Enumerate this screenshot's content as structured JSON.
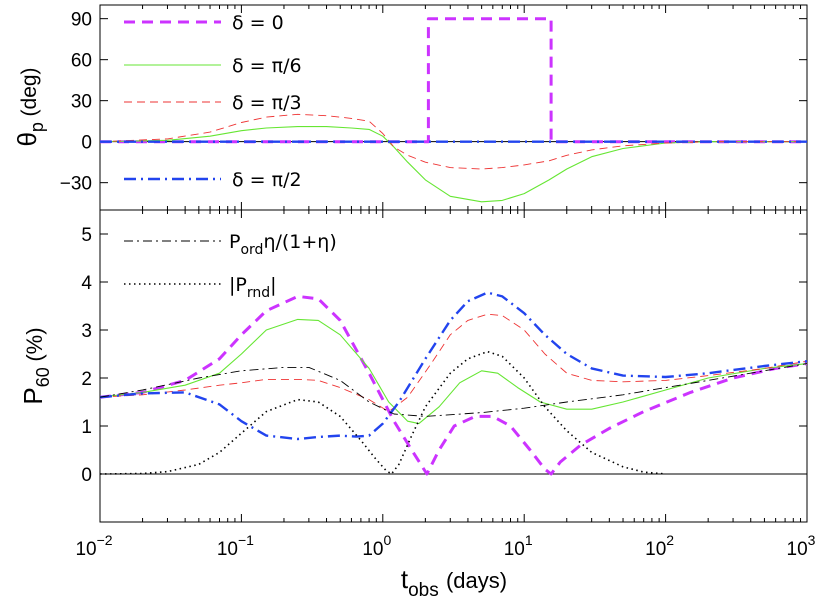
{
  "chart_data": [
    {
      "type": "line",
      "panel": "top",
      "ylabel_main": "θ",
      "ylabel_sub": "p",
      "ylabel_unit": "(deg)",
      "xscale": "log",
      "xlim": [
        0.01,
        1000
      ],
      "ylim": [
        -50,
        100
      ],
      "yticks": [
        -30,
        0,
        30,
        60,
        90
      ],
      "ytick_labels": [
        "−30",
        "0",
        "30",
        "60",
        "90"
      ],
      "legend_location": "left",
      "series": [
        {
          "name": "δ = 0",
          "color": "#cc33ff",
          "dash": "dashed-thick",
          "x": [
            0.01,
            2.1,
            2.1,
            15.5,
            15.5,
            1000
          ],
          "y": [
            0,
            0,
            90,
            90,
            0,
            0
          ]
        },
        {
          "name": "δ = π/6",
          "color": "#66e633",
          "dash": "solid",
          "x": [
            0.01,
            0.03,
            0.06,
            0.1,
            0.15,
            0.25,
            0.4,
            0.6,
            0.8,
            1.0,
            1.2,
            1.5,
            2,
            3,
            5,
            7,
            10,
            15,
            20,
            30,
            50,
            100,
            200,
            500,
            1000
          ],
          "y": [
            0,
            1,
            4,
            8,
            10,
            11,
            11,
            10,
            9,
            4,
            -4,
            -15,
            -28,
            -40,
            -44,
            -43,
            -38,
            -28,
            -20,
            -11,
            -5,
            -1,
            0,
            0,
            0
          ]
        },
        {
          "name": "δ = π/3",
          "color": "#ee3333",
          "dash": "dashed-thin",
          "x": [
            0.01,
            0.03,
            0.06,
            0.1,
            0.15,
            0.25,
            0.4,
            0.6,
            0.8,
            1.0,
            1.2,
            1.5,
            2,
            3,
            5,
            7,
            10,
            15,
            20,
            30,
            50,
            100,
            200,
            500,
            1000
          ],
          "y": [
            0,
            2,
            7,
            14,
            18,
            20,
            19,
            17,
            15,
            6,
            -4,
            -10,
            -15,
            -19,
            -20,
            -19,
            -17,
            -14,
            -10,
            -6,
            -3,
            -1,
            0,
            0,
            0
          ]
        },
        {
          "name": "δ = π/2",
          "color": "#2244ee",
          "dash": "dashdot",
          "x": [
            0.01,
            1000
          ],
          "y": [
            0,
            0
          ]
        }
      ]
    },
    {
      "type": "line",
      "panel": "bottom",
      "ylabel_main": "P",
      "ylabel_sub": "60",
      "ylabel_unit": "(%)",
      "xlabel_main": "t",
      "xlabel_sub": "obs",
      "xlabel_unit": "(days)",
      "xscale": "log",
      "xlim": [
        0.01,
        1000
      ],
      "ylim": [
        -1,
        5.5
      ],
      "yticks": [
        0,
        1,
        2,
        3,
        4,
        5
      ],
      "ytick_labels": [
        "0",
        "1",
        "2",
        "3",
        "4",
        "5"
      ],
      "xticks": [
        0.01,
        0.1,
        1,
        10,
        100,
        1000
      ],
      "xtick_base": "10",
      "xtick_exponents": [
        "−2",
        "−1",
        "0",
        "1",
        "2",
        "3"
      ],
      "legend_location": "top-left",
      "series": [
        {
          "name": "δ = 0",
          "color": "#cc33ff",
          "dash": "dashed-thick",
          "x": [
            0.01,
            0.02,
            0.04,
            0.07,
            0.1,
            0.15,
            0.25,
            0.35,
            0.5,
            0.8,
            1.2,
            1.6,
            2.05,
            2.5,
            3.2,
            4.5,
            6,
            8,
            11,
            14,
            15.5,
            18,
            25,
            40,
            70,
            150,
            300,
            600,
            1000
          ],
          "y": [
            1.6,
            1.7,
            1.95,
            2.4,
            2.9,
            3.4,
            3.7,
            3.65,
            3.2,
            2.1,
            1.1,
            0.5,
            0.0,
            0.5,
            1.0,
            1.2,
            1.2,
            1.0,
            0.5,
            0.1,
            0.0,
            0.25,
            0.6,
            0.95,
            1.3,
            1.7,
            2.0,
            2.2,
            2.3
          ]
        },
        {
          "name": "δ = π/6",
          "color": "#66e633",
          "dash": "solid",
          "x": [
            0.01,
            0.02,
            0.04,
            0.07,
            0.1,
            0.15,
            0.25,
            0.35,
            0.5,
            0.8,
            1.1,
            1.5,
            1.8,
            2.5,
            3.5,
            5,
            6.5,
            9,
            13,
            20,
            30,
            50,
            100,
            200,
            500,
            1000
          ],
          "y": [
            1.6,
            1.7,
            1.85,
            2.1,
            2.5,
            3.0,
            3.22,
            3.2,
            2.9,
            2.2,
            1.5,
            1.1,
            1.05,
            1.4,
            1.9,
            2.15,
            2.1,
            1.8,
            1.5,
            1.35,
            1.35,
            1.5,
            1.75,
            2.0,
            2.2,
            2.3
          ]
        },
        {
          "name": "δ = π/3",
          "color": "#ee3333",
          "dash": "dashed-thin",
          "x": [
            0.01,
            0.02,
            0.04,
            0.07,
            0.1,
            0.15,
            0.25,
            0.35,
            0.5,
            0.8,
            1.1,
            1.5,
            2.2,
            3,
            4,
            5.5,
            7,
            10,
            14,
            20,
            30,
            50,
            100,
            200,
            500,
            1000
          ],
          "y": [
            1.6,
            1.65,
            1.75,
            1.85,
            1.9,
            1.97,
            1.97,
            1.95,
            1.8,
            1.55,
            1.3,
            1.6,
            2.3,
            2.9,
            3.2,
            3.33,
            3.3,
            3.0,
            2.5,
            2.1,
            1.95,
            1.92,
            1.95,
            2.05,
            2.2,
            2.35
          ]
        },
        {
          "name": "δ = π/2",
          "color": "#2244ee",
          "dash": "dashdot",
          "x": [
            0.01,
            0.02,
            0.04,
            0.07,
            0.1,
            0.15,
            0.25,
            0.35,
            0.5,
            0.65,
            0.8,
            1.0,
            1.3,
            2,
            3,
            4,
            5.5,
            7,
            10,
            14,
            20,
            30,
            50,
            100,
            200,
            500,
            1000
          ],
          "y": [
            1.6,
            1.68,
            1.7,
            1.45,
            1.1,
            0.8,
            0.73,
            0.77,
            0.8,
            0.78,
            0.8,
            1.05,
            1.5,
            2.4,
            3.2,
            3.6,
            3.78,
            3.7,
            3.35,
            2.9,
            2.5,
            2.2,
            2.05,
            2.02,
            2.1,
            2.25,
            2.35
          ]
        },
        {
          "name": "P_ordη/(1+η)",
          "label_main": "P",
          "label_sub": "ord",
          "label_rest": "η/(1+η)",
          "color": "#000000",
          "dash": "dashdot-black",
          "x": [
            0.01,
            0.02,
            0.05,
            0.1,
            0.2,
            0.3,
            0.5,
            0.8,
            1.2,
            2,
            5,
            10,
            20,
            50,
            100,
            200,
            500,
            1000
          ],
          "y": [
            1.6,
            1.75,
            2.0,
            2.15,
            2.22,
            2.22,
            1.95,
            1.5,
            1.25,
            1.2,
            1.28,
            1.37,
            1.5,
            1.65,
            1.8,
            1.95,
            2.15,
            2.3
          ]
        },
        {
          "name": "|P_rnd|",
          "label_main": "|P",
          "label_sub": "rnd",
          "label_rest": "|",
          "color": "#000000",
          "dash": "dotted",
          "x": [
            0.01,
            0.02,
            0.03,
            0.05,
            0.07,
            0.1,
            0.15,
            0.25,
            0.35,
            0.5,
            0.7,
            0.9,
            1.05,
            1.15,
            1.3,
            1.6,
            2,
            3,
            4,
            5.5,
            7,
            10,
            14,
            20,
            30,
            50,
            70,
            100
          ],
          "y": [
            0.0,
            0.01,
            0.05,
            0.2,
            0.45,
            0.85,
            1.3,
            1.55,
            1.5,
            1.2,
            0.7,
            0.3,
            0.08,
            0.0,
            0.2,
            0.8,
            1.4,
            2.1,
            2.4,
            2.55,
            2.45,
            2.0,
            1.4,
            0.9,
            0.45,
            0.15,
            0.04,
            0.0
          ]
        }
      ]
    }
  ]
}
